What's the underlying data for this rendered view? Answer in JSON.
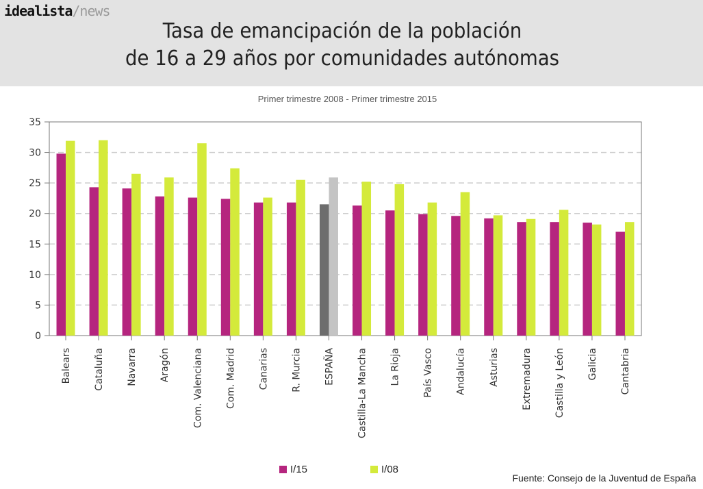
{
  "logo": {
    "brand": "idealista",
    "section": "/news"
  },
  "header": {
    "title_line1": "Tasa de emancipación de la población",
    "title_line2": "de 16 a 29 años por comunidades autónomas"
  },
  "subtitle": "Primer trimestre 2008 - Primer trimestre 2015",
  "source": "Fuente: Consejo de la Juventud de España",
  "colors": {
    "series_2015": "#b5257e",
    "series_2008": "#d4ea3b",
    "spain_2015": "#6d6d6d",
    "spain_2008": "#c4c4c4",
    "grid": "#cccccc",
    "axis": "#777777"
  },
  "chart_data": {
    "type": "bar",
    "title": "Tasa de emancipación de la población de 16 a 29 años por comunidades autónomas",
    "subtitle": "Primer trimestre 2008 - Primer trimestre 2015",
    "xlabel": "",
    "ylabel": "",
    "ylim": [
      0,
      35
    ],
    "yticks": [
      0,
      5,
      10,
      15,
      20,
      25,
      30,
      35
    ],
    "grid": "horizontal dashed",
    "legend_position": "bottom",
    "highlight_category": "ESPAÑA",
    "categories": [
      "Balears",
      "Cataluña",
      "Navarra",
      "Aragón",
      "Com. Valenciana",
      "Com. Madrid",
      "Canarias",
      "R. Murcia",
      "ESPAÑA",
      "Castilla-La Mancha",
      "La Rioja",
      "País Vasco",
      "Andalucía",
      "Asturias",
      "Extremadura",
      "Castilla y León",
      "Galicia",
      "Cantabria"
    ],
    "series": [
      {
        "name": "I/15",
        "values": [
          29.8,
          24.3,
          24.1,
          22.8,
          22.6,
          22.4,
          21.8,
          21.8,
          21.5,
          21.3,
          20.5,
          19.9,
          19.6,
          19.2,
          18.6,
          18.6,
          18.5,
          17.0
        ]
      },
      {
        "name": "I/08",
        "values": [
          31.9,
          32.0,
          26.5,
          25.9,
          31.5,
          27.4,
          22.6,
          25.5,
          25.9,
          25.2,
          24.8,
          21.8,
          23.5,
          19.7,
          19.1,
          20.6,
          18.2,
          18.6
        ]
      }
    ]
  }
}
